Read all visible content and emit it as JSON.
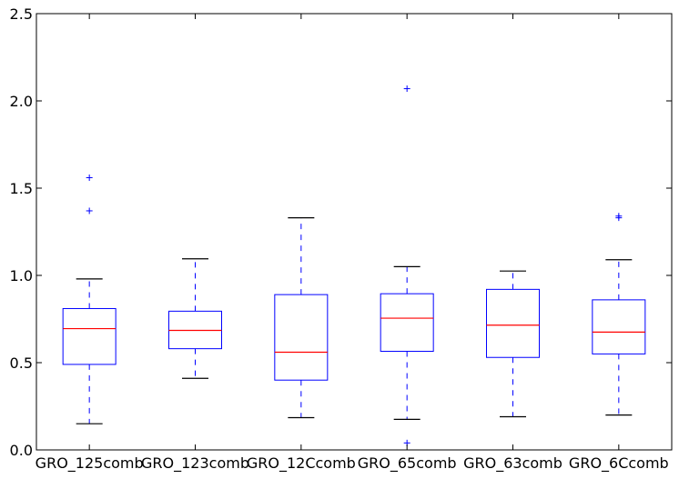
{
  "chart_data": {
    "type": "box",
    "title": "",
    "xlabel": "",
    "ylabel": "",
    "ylim": [
      0,
      2.5
    ],
    "yticks": [
      "0.0",
      "0.5",
      "1.0",
      "1.5",
      "2.0",
      "2.5"
    ],
    "grid": false,
    "categories": [
      "GRO_125comb",
      "GRO_123comb",
      "GRO_12Ccomb",
      "GRO_65comb",
      "GRO_63comb",
      "GRO_6Ccomb"
    ],
    "boxes": [
      {
        "whisker_low": 0.15,
        "q1": 0.49,
        "median": 0.695,
        "q3": 0.81,
        "whisker_high": 0.98,
        "outliers": [
          1.37,
          1.56
        ]
      },
      {
        "whisker_low": 0.41,
        "q1": 0.58,
        "median": 0.685,
        "q3": 0.795,
        "whisker_high": 1.095,
        "outliers": []
      },
      {
        "whisker_low": 0.185,
        "q1": 0.4,
        "median": 0.56,
        "q3": 0.89,
        "whisker_high": 1.33,
        "outliers": []
      },
      {
        "whisker_low": 0.175,
        "q1": 0.565,
        "median": 0.755,
        "q3": 0.895,
        "whisker_high": 1.05,
        "outliers": [
          2.07,
          0.04
        ]
      },
      {
        "whisker_low": 0.19,
        "q1": 0.53,
        "median": 0.715,
        "q3": 0.92,
        "whisker_high": 1.025,
        "outliers": []
      },
      {
        "whisker_low": 0.2,
        "q1": 0.55,
        "median": 0.675,
        "q3": 0.86,
        "whisker_high": 1.09,
        "outliers": [
          1.33,
          1.34
        ]
      }
    ],
    "colors": {
      "box": "#0000ff",
      "median": "#ff0000",
      "whisker": "#0000ff",
      "cap": "#000000",
      "outlier": "#0000ff",
      "axis": "#000000"
    }
  }
}
